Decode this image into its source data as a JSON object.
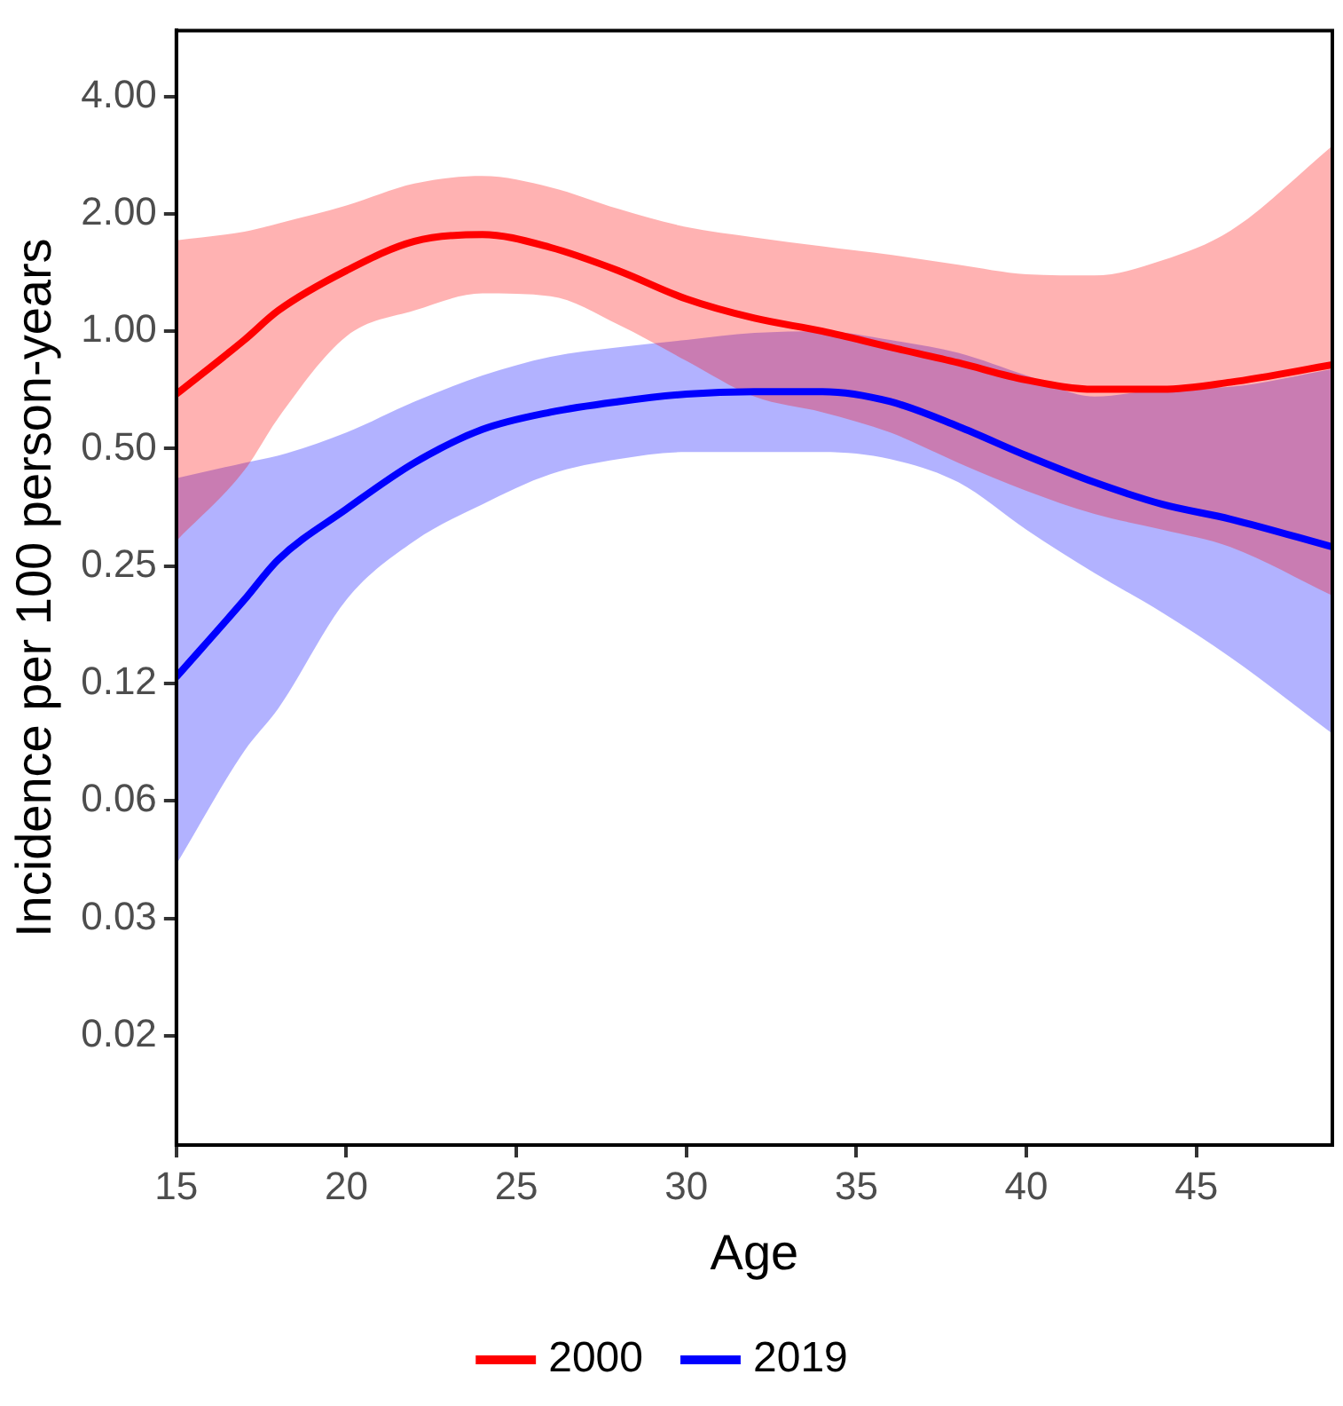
{
  "chart_data": {
    "type": "line",
    "xlabel": "Age",
    "ylabel": "Incidence per 100 person-years",
    "log": "y",
    "grid": false,
    "legend": "bottom",
    "marker": "none",
    "line_style": "solid",
    "xlim": [
      15,
      49
    ],
    "xticks": [
      15,
      20,
      25,
      30,
      35,
      40,
      45
    ],
    "ylim": [
      0.0082,
      5.9
    ],
    "yticks": [
      {
        "value": 0.015625,
        "label": "0.02"
      },
      {
        "value": 0.03125,
        "label": "0.03"
      },
      {
        "value": 0.0625,
        "label": "0.06"
      },
      {
        "value": 0.125,
        "label": "0.12"
      },
      {
        "value": 0.25,
        "label": "0.25"
      },
      {
        "value": 0.5,
        "label": "0.50"
      },
      {
        "value": 1,
        "label": "1.00"
      },
      {
        "value": 2,
        "label": "2.00"
      },
      {
        "value": 4,
        "label": "4.00"
      }
    ],
    "x": [
      15,
      17,
      18,
      20,
      22,
      24,
      26,
      28,
      30,
      32,
      34,
      36,
      38,
      40,
      42,
      44,
      46,
      49
    ],
    "series": [
      {
        "name": "2000",
        "color": "#ff0000",
        "values": [
          0.69,
          0.95,
          1.13,
          1.43,
          1.7,
          1.77,
          1.64,
          1.43,
          1.21,
          1.08,
          1.0,
          0.91,
          0.83,
          0.75,
          0.71,
          0.71,
          0.74,
          0.82
        ],
        "upper": [
          1.71,
          1.8,
          1.89,
          2.1,
          2.39,
          2.5,
          2.34,
          2.06,
          1.85,
          1.74,
          1.65,
          1.57,
          1.48,
          1.4,
          1.39,
          1.52,
          1.81,
          2.99
        ],
        "lower": [
          0.29,
          0.44,
          0.6,
          0.97,
          1.13,
          1.25,
          1.23,
          1.04,
          0.84,
          0.68,
          0.62,
          0.55,
          0.46,
          0.39,
          0.34,
          0.31,
          0.28,
          0.21
        ]
      },
      {
        "name": "2019",
        "color": "#0000ff",
        "values": [
          0.13,
          0.205,
          0.26,
          0.35,
          0.46,
          0.56,
          0.62,
          0.66,
          0.69,
          0.7,
          0.7,
          0.66,
          0.57,
          0.48,
          0.41,
          0.36,
          0.33,
          0.28
        ],
        "upper": [
          0.42,
          0.46,
          0.48,
          0.55,
          0.66,
          0.77,
          0.86,
          0.91,
          0.95,
          0.99,
          1.0,
          0.95,
          0.88,
          0.77,
          0.68,
          0.71,
          0.72,
          0.8
        ],
        "lower": [
          0.043,
          0.084,
          0.108,
          0.205,
          0.29,
          0.36,
          0.43,
          0.47,
          0.49,
          0.49,
          0.49,
          0.47,
          0.41,
          0.31,
          0.24,
          0.19,
          0.146,
          0.093
        ]
      }
    ]
  }
}
